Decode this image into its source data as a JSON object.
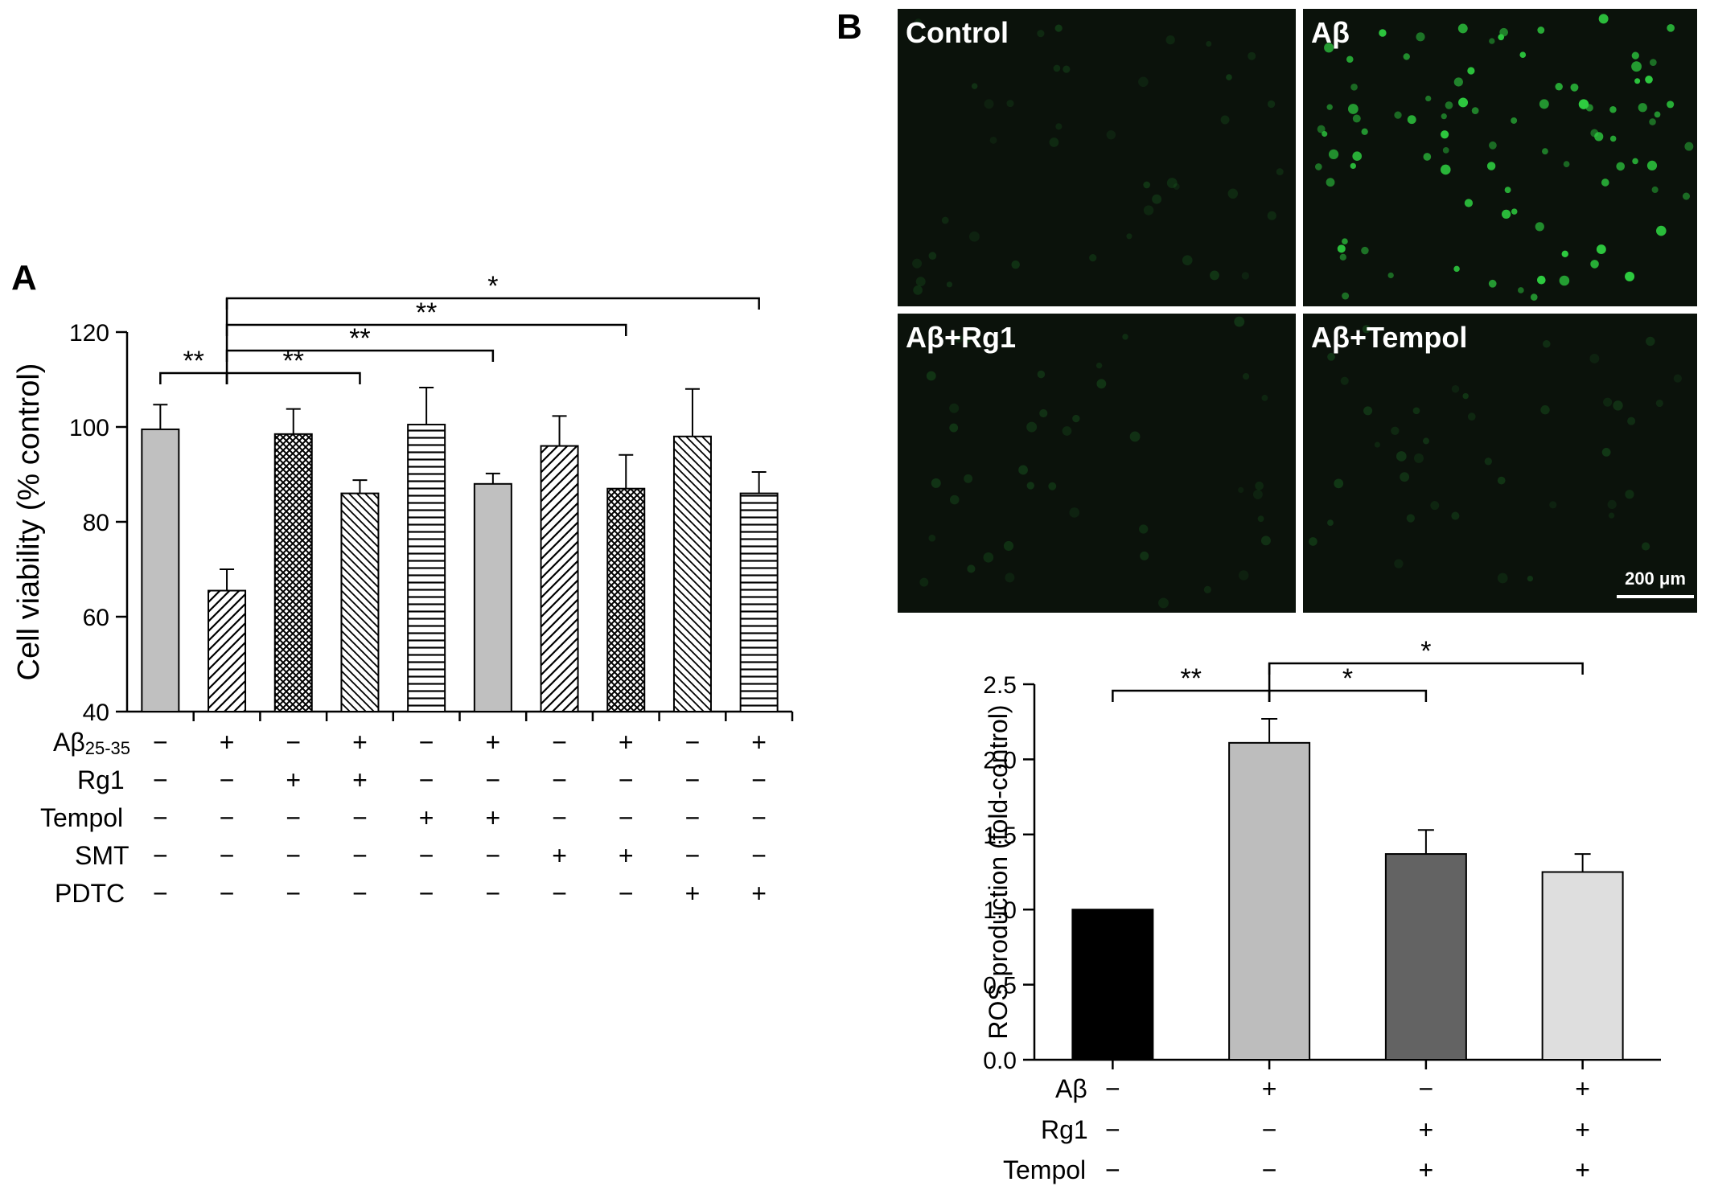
{
  "panels": {
    "a_label": "A",
    "b_label": "B"
  },
  "chart_data": [
    {
      "type": "bar",
      "panel": "A",
      "ylabel": "Cell viability  (% control)",
      "ylim": [
        40,
        120
      ],
      "yticks": [
        "40",
        "60",
        "80",
        "100",
        "120"
      ],
      "values": [
        99.5,
        65.5,
        98.5,
        86,
        100.5,
        88,
        96,
        87,
        98,
        86
      ],
      "errors": [
        5.2,
        4.5,
        5.3,
        2.8,
        7.8,
        2.2,
        6.3,
        7.1,
        10.0,
        4.5
      ],
      "bar_fills": [
        "solid",
        "diag-right",
        "crosshatch",
        "diag-left",
        "horizontal",
        "solid",
        "diag-right",
        "crosshatch",
        "diag-left",
        "horizontal"
      ],
      "treatment_rows": [
        {
          "label_main": "Aβ",
          "label_sub": "25-35",
          "signs": [
            "−",
            "+",
            "−",
            "+",
            "−",
            "+",
            "−",
            "+",
            "−",
            "+"
          ]
        },
        {
          "label_main": "Rg1",
          "label_sub": "",
          "signs": [
            "−",
            "−",
            "+",
            "+",
            "−",
            "−",
            "−",
            "−",
            "−",
            "−"
          ]
        },
        {
          "label_main": "Tempol",
          "label_sub": "",
          "signs": [
            "−",
            "−",
            "−",
            "−",
            "+",
            "+",
            "−",
            "−",
            "−",
            "−"
          ]
        },
        {
          "label_main": "SMT",
          "label_sub": "",
          "signs": [
            "−",
            "−",
            "−",
            "−",
            "−",
            "−",
            "+",
            "+",
            "−",
            "−"
          ]
        },
        {
          "label_main": "PDTC",
          "label_sub": "",
          "signs": [
            "−",
            "−",
            "−",
            "−",
            "−",
            "−",
            "−",
            "−",
            "+",
            "+"
          ]
        }
      ],
      "significance": [
        {
          "from": 0,
          "to": 1,
          "label": "**"
        },
        {
          "from": 1,
          "to": 3,
          "label": "**"
        },
        {
          "from": 1,
          "to": 5,
          "label": "**"
        },
        {
          "from": 1,
          "to": 7,
          "label": "**"
        },
        {
          "from": 1,
          "to": 9,
          "label": "*"
        }
      ]
    },
    {
      "type": "bar",
      "panel": "B",
      "ylabel": "ROS production (fold-control)",
      "ylim": [
        0,
        2.5
      ],
      "yticks": [
        "0.0",
        "0.5",
        "1.0",
        "1.5",
        "2.0",
        "2.5"
      ],
      "values": [
        1.0,
        2.11,
        1.37,
        1.25
      ],
      "errors": [
        0.0,
        0.16,
        0.16,
        0.12
      ],
      "colors": [
        "#000000",
        "#bdbdbd",
        "#636363",
        "#dedede"
      ],
      "treatment_rows": [
        {
          "label": "Aβ",
          "signs": [
            "−",
            "+",
            "−",
            "+"
          ]
        },
        {
          "label": "Rg1",
          "signs": [
            "−",
            "−",
            "+",
            "+"
          ]
        },
        {
          "label": "Tempol",
          "signs": [
            "−",
            "−",
            "+",
            "+"
          ]
        }
      ],
      "significance": [
        {
          "from": 0,
          "to": 1,
          "label": "**"
        },
        {
          "from": 1,
          "to": 2,
          "label": "*"
        },
        {
          "from": 1,
          "to": 3,
          "label": "*"
        }
      ]
    }
  ],
  "micrographs": {
    "labels": [
      "Control",
      "Aβ",
      "Aβ+Rg1",
      "Aβ+Tempol"
    ],
    "background_color": "#0b120b",
    "fluorescence_color": "#2ecc40",
    "relative_intensity": [
      0.15,
      1.0,
      0.15,
      0.2
    ],
    "scale_bar_label": "200 μm"
  }
}
